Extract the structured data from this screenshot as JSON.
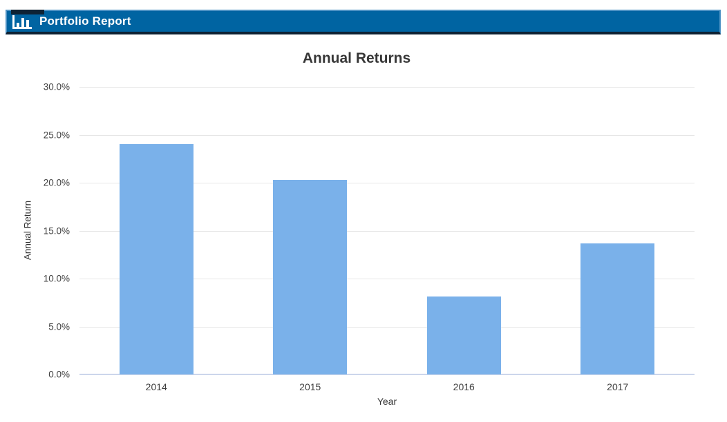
{
  "app": {
    "title": "Portfolio Report",
    "icon": "bar-chart-icon"
  },
  "colors": {
    "header_bg": "#0064a2",
    "header_border_light": "#4e93c4",
    "header_border_dark": "#0e2234",
    "header_text": "#ffffff",
    "title_text": "#373737",
    "tick_text": "#3f3f3f",
    "gridline": "#e6e6e6",
    "axis_line": "#ccd6eb",
    "bar": "#7ab1ea"
  },
  "chart_data": {
    "type": "bar",
    "title": "Annual Returns",
    "xlabel": "Year",
    "ylabel": "Annual Return",
    "categories": [
      "2014",
      "2015",
      "2016",
      "2017"
    ],
    "values": [
      24.0,
      20.3,
      8.1,
      13.7
    ],
    "ylim": [
      0,
      30
    ],
    "ytick_step": 5,
    "ytick_labels": [
      "0.0%",
      "5.0%",
      "10.0%",
      "15.0%",
      "20.0%",
      "25.0%",
      "30.0%"
    ],
    "grid": true,
    "legend": "none",
    "bar_color": "#7ab1ea"
  }
}
